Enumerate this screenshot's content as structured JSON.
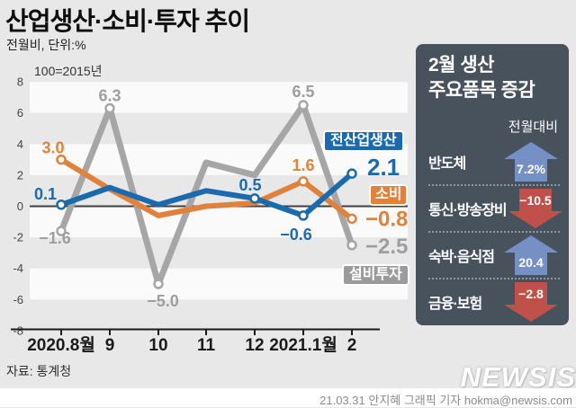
{
  "header": {
    "title": "산업생산·소비·투자 추이",
    "subtitle": "전월비, 단위:%"
  },
  "chart_data": {
    "type": "line",
    "note": "100=2015년",
    "x_labels": [
      "2020.8월",
      "9",
      "10",
      "11",
      "12",
      "2021.1월",
      "2"
    ],
    "ylim": [
      -8,
      8
    ],
    "ytick_step": 2,
    "grid": "striped-bands",
    "legend_position": "inline-right",
    "series": [
      {
        "name": "설비투자",
        "color": "#a6a6a6",
        "label_color": "#9e9e9e",
        "values": [
          -1.6,
          6.3,
          -5.0,
          2.8,
          2.0,
          6.5,
          -2.5
        ],
        "point_labels": [
          {
            "t": "−1.6",
            "dx": -7,
            "dy": 14
          },
          {
            "t": "6.3",
            "dx": 0,
            "dy": -8
          },
          {
            "t": "−5.0",
            "dx": 5,
            "dy": 25
          },
          null,
          null,
          {
            "t": "6.5",
            "dx": 0,
            "dy": -9
          },
          {
            "t": "−2.5",
            "dx": 15,
            "dy": 9,
            "anchor": "start",
            "size": 24
          }
        ]
      },
      {
        "name": "소비",
        "color": "#e0813c",
        "label_color": "#e0813c",
        "values": [
          3.0,
          1.1,
          -0.6,
          0.0,
          0.2,
          1.6,
          -0.8
        ],
        "point_labels": [
          {
            "t": "3.0",
            "dx": -9,
            "dy": -7
          },
          null,
          null,
          null,
          null,
          {
            "t": "1.6",
            "dx": 0,
            "dy": -12
          },
          {
            "t": "−0.8",
            "dx": 15,
            "dy": 8,
            "anchor": "start",
            "size": 24
          }
        ]
      },
      {
        "name": "전산업생산",
        "color": "#1a6aad",
        "label_color": "#1a6aad",
        "values": [
          0.1,
          1.2,
          0.1,
          1.0,
          0.5,
          -0.6,
          2.1
        ],
        "point_labels": [
          {
            "t": "0.1",
            "dx": -5,
            "dy": -6,
            "anchor": "end"
          },
          null,
          null,
          null,
          {
            "t": "0.5",
            "dx": -5,
            "dy": -9
          },
          {
            "t": "−0.6",
            "dx": -8,
            "dy": 27
          },
          {
            "t": "2.1",
            "dx": 17,
            "dy": 2,
            "anchor": "start",
            "size": 26
          }
        ]
      }
    ]
  },
  "panel": {
    "title_line1": "2월 생산",
    "title_line2": "주요품목 증감",
    "col_header": "전월대비",
    "colors": {
      "bg": "#47525c",
      "up": "#7590c5",
      "down": "#c0504a"
    },
    "rows": [
      {
        "label": "반도체",
        "direction": "up",
        "value": "7.2%"
      },
      {
        "label": "통신·방송장비",
        "direction": "down",
        "value": "−10.5"
      },
      {
        "label": "숙박·음식점",
        "direction": "up",
        "value": "20.4"
      },
      {
        "label": "금융·보험",
        "direction": "down",
        "value": "−2.8"
      }
    ]
  },
  "footer": {
    "source": "자료: 통계청",
    "watermark": "NEWSIS",
    "credit": "21.03.31 안지혜 그래픽 기자 hokma@newsis.com"
  }
}
